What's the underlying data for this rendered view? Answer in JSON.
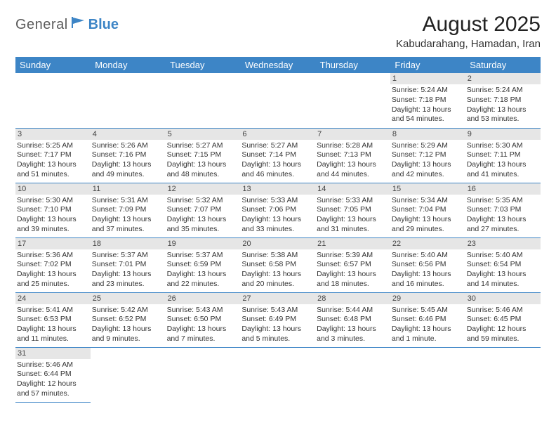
{
  "logo": {
    "text1": "General",
    "text2": "Blue",
    "blue_color": "#3d85c6",
    "gray_color": "#5b5b5b"
  },
  "header": {
    "title": "August 2025",
    "subtitle": "Kabudarahang, Hamadan, Iran"
  },
  "weekdays": [
    "Sunday",
    "Monday",
    "Tuesday",
    "Wednesday",
    "Thursday",
    "Friday",
    "Saturday"
  ],
  "colors": {
    "header_bg": "#3d85c6",
    "header_text": "#ffffff",
    "daynum_bg": "#e6e6e6",
    "border": "#3d85c6",
    "text": "#333333"
  },
  "typography": {
    "title_fontsize": 30,
    "subtitle_fontsize": 15,
    "label_fontsize": 13,
    "cell_fontsize": 10.5
  },
  "days": [
    null,
    null,
    null,
    null,
    null,
    {
      "n": "1",
      "sunrise": "Sunrise: 5:24 AM",
      "sunset": "Sunset: 7:18 PM",
      "daylight": "Daylight: 13 hours and 54 minutes."
    },
    {
      "n": "2",
      "sunrise": "Sunrise: 5:24 AM",
      "sunset": "Sunset: 7:18 PM",
      "daylight": "Daylight: 13 hours and 53 minutes."
    },
    {
      "n": "3",
      "sunrise": "Sunrise: 5:25 AM",
      "sunset": "Sunset: 7:17 PM",
      "daylight": "Daylight: 13 hours and 51 minutes."
    },
    {
      "n": "4",
      "sunrise": "Sunrise: 5:26 AM",
      "sunset": "Sunset: 7:16 PM",
      "daylight": "Daylight: 13 hours and 49 minutes."
    },
    {
      "n": "5",
      "sunrise": "Sunrise: 5:27 AM",
      "sunset": "Sunset: 7:15 PM",
      "daylight": "Daylight: 13 hours and 48 minutes."
    },
    {
      "n": "6",
      "sunrise": "Sunrise: 5:27 AM",
      "sunset": "Sunset: 7:14 PM",
      "daylight": "Daylight: 13 hours and 46 minutes."
    },
    {
      "n": "7",
      "sunrise": "Sunrise: 5:28 AM",
      "sunset": "Sunset: 7:13 PM",
      "daylight": "Daylight: 13 hours and 44 minutes."
    },
    {
      "n": "8",
      "sunrise": "Sunrise: 5:29 AM",
      "sunset": "Sunset: 7:12 PM",
      "daylight": "Daylight: 13 hours and 42 minutes."
    },
    {
      "n": "9",
      "sunrise": "Sunrise: 5:30 AM",
      "sunset": "Sunset: 7:11 PM",
      "daylight": "Daylight: 13 hours and 41 minutes."
    },
    {
      "n": "10",
      "sunrise": "Sunrise: 5:30 AM",
      "sunset": "Sunset: 7:10 PM",
      "daylight": "Daylight: 13 hours and 39 minutes."
    },
    {
      "n": "11",
      "sunrise": "Sunrise: 5:31 AM",
      "sunset": "Sunset: 7:09 PM",
      "daylight": "Daylight: 13 hours and 37 minutes."
    },
    {
      "n": "12",
      "sunrise": "Sunrise: 5:32 AM",
      "sunset": "Sunset: 7:07 PM",
      "daylight": "Daylight: 13 hours and 35 minutes."
    },
    {
      "n": "13",
      "sunrise": "Sunrise: 5:33 AM",
      "sunset": "Sunset: 7:06 PM",
      "daylight": "Daylight: 13 hours and 33 minutes."
    },
    {
      "n": "14",
      "sunrise": "Sunrise: 5:33 AM",
      "sunset": "Sunset: 7:05 PM",
      "daylight": "Daylight: 13 hours and 31 minutes."
    },
    {
      "n": "15",
      "sunrise": "Sunrise: 5:34 AM",
      "sunset": "Sunset: 7:04 PM",
      "daylight": "Daylight: 13 hours and 29 minutes."
    },
    {
      "n": "16",
      "sunrise": "Sunrise: 5:35 AM",
      "sunset": "Sunset: 7:03 PM",
      "daylight": "Daylight: 13 hours and 27 minutes."
    },
    {
      "n": "17",
      "sunrise": "Sunrise: 5:36 AM",
      "sunset": "Sunset: 7:02 PM",
      "daylight": "Daylight: 13 hours and 25 minutes."
    },
    {
      "n": "18",
      "sunrise": "Sunrise: 5:37 AM",
      "sunset": "Sunset: 7:01 PM",
      "daylight": "Daylight: 13 hours and 23 minutes."
    },
    {
      "n": "19",
      "sunrise": "Sunrise: 5:37 AM",
      "sunset": "Sunset: 6:59 PM",
      "daylight": "Daylight: 13 hours and 22 minutes."
    },
    {
      "n": "20",
      "sunrise": "Sunrise: 5:38 AM",
      "sunset": "Sunset: 6:58 PM",
      "daylight": "Daylight: 13 hours and 20 minutes."
    },
    {
      "n": "21",
      "sunrise": "Sunrise: 5:39 AM",
      "sunset": "Sunset: 6:57 PM",
      "daylight": "Daylight: 13 hours and 18 minutes."
    },
    {
      "n": "22",
      "sunrise": "Sunrise: 5:40 AM",
      "sunset": "Sunset: 6:56 PM",
      "daylight": "Daylight: 13 hours and 16 minutes."
    },
    {
      "n": "23",
      "sunrise": "Sunrise: 5:40 AM",
      "sunset": "Sunset: 6:54 PM",
      "daylight": "Daylight: 13 hours and 14 minutes."
    },
    {
      "n": "24",
      "sunrise": "Sunrise: 5:41 AM",
      "sunset": "Sunset: 6:53 PM",
      "daylight": "Daylight: 13 hours and 11 minutes."
    },
    {
      "n": "25",
      "sunrise": "Sunrise: 5:42 AM",
      "sunset": "Sunset: 6:52 PM",
      "daylight": "Daylight: 13 hours and 9 minutes."
    },
    {
      "n": "26",
      "sunrise": "Sunrise: 5:43 AM",
      "sunset": "Sunset: 6:50 PM",
      "daylight": "Daylight: 13 hours and 7 minutes."
    },
    {
      "n": "27",
      "sunrise": "Sunrise: 5:43 AM",
      "sunset": "Sunset: 6:49 PM",
      "daylight": "Daylight: 13 hours and 5 minutes."
    },
    {
      "n": "28",
      "sunrise": "Sunrise: 5:44 AM",
      "sunset": "Sunset: 6:48 PM",
      "daylight": "Daylight: 13 hours and 3 minutes."
    },
    {
      "n": "29",
      "sunrise": "Sunrise: 5:45 AM",
      "sunset": "Sunset: 6:46 PM",
      "daylight": "Daylight: 13 hours and 1 minute."
    },
    {
      "n": "30",
      "sunrise": "Sunrise: 5:46 AM",
      "sunset": "Sunset: 6:45 PM",
      "daylight": "Daylight: 12 hours and 59 minutes."
    },
    {
      "n": "31",
      "sunrise": "Sunrise: 5:46 AM",
      "sunset": "Sunset: 6:44 PM",
      "daylight": "Daylight: 12 hours and 57 minutes."
    },
    null,
    null,
    null,
    null,
    null,
    null
  ]
}
